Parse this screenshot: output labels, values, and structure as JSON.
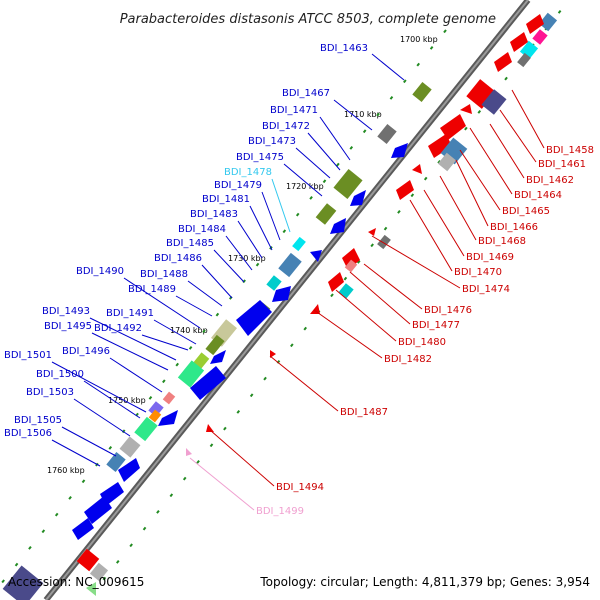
{
  "title": "Parabacteroides distasonis ATCC 8503, complete genome",
  "accession": "Accession: NC_009615",
  "topology": "Topology: circular; Length: 4,811,379 bp; Genes: 3,954",
  "ticks": [
    "1700 kbp",
    "1710 kbp",
    "1720 kbp",
    "1730 kbp",
    "1740 kbp",
    "1750 kbp",
    "1760 kbp"
  ],
  "colors": {
    "forward": "#0000ee",
    "reverse": "#ee0000",
    "highlight_cyan": "#33c8ee",
    "highlight_pink": "#f0a0d0",
    "backbone": "#808080"
  },
  "labels_left": [
    "BDI_1463",
    "BDI_1467",
    "BDI_1471",
    "BDI_1472",
    "BDI_1473",
    "BDI_1475",
    "BDI_1478",
    "BDI_1479",
    "BDI_1481",
    "BDI_1483",
    "BDI_1484",
    "BDI_1485",
    "BDI_1486",
    "BDI_1488",
    "BDI_1490",
    "BDI_1489",
    "BDI_1491",
    "BDI_1493",
    "BDI_1495",
    "BDI_1492",
    "BDI_1496",
    "BDI_1501",
    "BDI_1500",
    "BDI_1503",
    "BDI_1505",
    "BDI_1506"
  ],
  "labels_right": [
    "BDI_1458",
    "BDI_1461",
    "BDI_1462",
    "BDI_1464",
    "BDI_1465",
    "BDI_1466",
    "BDI_1468",
    "BDI_1469",
    "BDI_1470",
    "BDI_1474",
    "BDI_1476",
    "BDI_1477",
    "BDI_1480",
    "BDI_1482",
    "BDI_1487",
    "BDI_1494",
    "BDI_1499"
  ]
}
